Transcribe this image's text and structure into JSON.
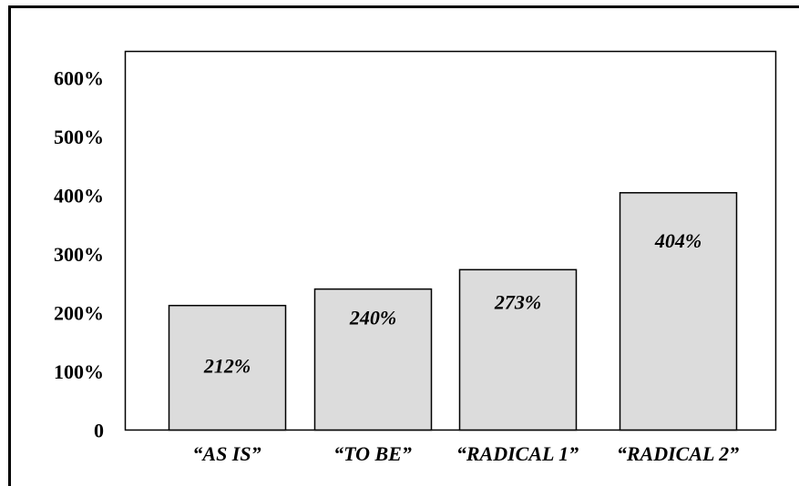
{
  "chart_data": {
    "type": "bar",
    "title": "",
    "xlabel": "",
    "ylabel": "",
    "categories": [
      "“AS IS”",
      "“TO BE”",
      "“RADICAL 1”",
      "“RADICAL 2”"
    ],
    "values": [
      212,
      240,
      273,
      404
    ],
    "data_labels": [
      "212%",
      "240%",
      "273%",
      "404%"
    ],
    "y_tick_labels": [
      "0",
      "100%",
      "200%",
      "300%",
      "400%",
      "500%",
      "600%"
    ],
    "y_tick_values": [
      0,
      100,
      200,
      300,
      400,
      500,
      600
    ],
    "ylim": [
      0,
      700
    ],
    "grid": false,
    "legend": "none",
    "bar_color": "#dcdcdc",
    "bar_edge_color": "#000000"
  }
}
